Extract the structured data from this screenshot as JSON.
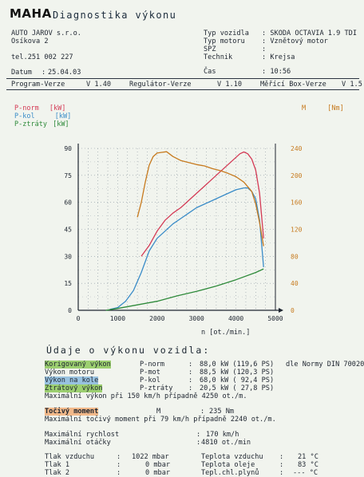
{
  "header": {
    "logo": "MAHA",
    "title": "Diagnostika výkonu",
    "company": [
      "AUTO JAROV s.r.o.",
      "Osíkova 2"
    ],
    "phone": "tel.251 002 227",
    "date_label": "Datum",
    "date_value": "25.04.03",
    "vehicle": [
      {
        "label": "Typ vozidla",
        "value": "SKODA OCTAVIA 1.9 TDI"
      },
      {
        "label": "Typ motoru",
        "value": "Vznětový motor"
      },
      {
        "label": "SPZ",
        "value": ""
      },
      {
        "label": "Technik",
        "value": "Krejsa"
      },
      {
        "label": "Čas",
        "value": "10:56"
      }
    ],
    "versions": [
      {
        "label": "Program-Verze",
        "value": "V 1.40"
      },
      {
        "label": "Regulátor-Verze",
        "value": "V 1.10"
      },
      {
        "label": "Měřící Box-Verze",
        "value": "V 1.5"
      }
    ]
  },
  "legend": [
    {
      "name": "P-norm",
      "unit": "[kW]",
      "color": "#d43a55"
    },
    {
      "name": "P-kol",
      "unit": "[kW]",
      "color": "#3a8cc8"
    },
    {
      "name": "P-ztráty",
      "unit": "[kW]",
      "color": "#2e8a3a"
    }
  ],
  "torque_legend": {
    "name": "M",
    "unit": "[Nm]",
    "color": "#c77a1e"
  },
  "chart_data": {
    "type": "line",
    "xlabel": "n [ot./min.]",
    "xlim": [
      0,
      5000
    ],
    "xticks": [
      0,
      1000,
      2000,
      3000,
      4000,
      5000
    ],
    "ylim": [
      0,
      90
    ],
    "yticks": [
      0,
      15,
      30,
      45,
      60,
      75,
      90
    ],
    "y2lim": [
      0,
      240
    ],
    "y2ticks": [
      0,
      40,
      80,
      120,
      160,
      200,
      240
    ],
    "grid": true,
    "series": [
      {
        "name": "P-norm",
        "axis": "left",
        "color": "#d43a55",
        "x": [
          1600,
          1800,
          2000,
          2200,
          2400,
          2600,
          2800,
          3000,
          3200,
          3400,
          3600,
          3800,
          4000,
          4100,
          4200,
          4300,
          4400,
          4500,
          4600,
          4700
        ],
        "y": [
          30,
          36,
          44,
          50,
          54,
          57,
          61,
          65,
          69,
          73,
          77,
          81,
          85,
          87,
          88,
          87,
          84,
          78,
          65,
          40
        ]
      },
      {
        "name": "P-kol",
        "axis": "left",
        "color": "#3a8cc8",
        "x": [
          800,
          1000,
          1200,
          1400,
          1600,
          1800,
          2000,
          2200,
          2400,
          2600,
          2800,
          3000,
          3200,
          3400,
          3600,
          3800,
          4000,
          4200,
          4300,
          4400,
          4500,
          4600,
          4700
        ],
        "y": [
          0.5,
          1.5,
          5,
          11,
          21,
          33,
          40,
          44,
          48,
          51,
          54,
          57,
          59,
          61,
          63,
          65,
          67,
          68,
          68,
          66,
          62,
          50,
          24
        ]
      },
      {
        "name": "P-ztráty",
        "axis": "left",
        "color": "#2e8a3a",
        "x": [
          700,
          1000,
          1500,
          2000,
          2500,
          3000,
          3500,
          4000,
          4500,
          4700
        ],
        "y": [
          0,
          1,
          3,
          5,
          8,
          10.5,
          13.5,
          17,
          21,
          23
        ]
      },
      {
        "name": "M",
        "axis": "right",
        "color": "#c77a1e",
        "x": [
          1500,
          1600,
          1700,
          1800,
          1900,
          2000,
          2100,
          2240,
          2400,
          2600,
          2800,
          3000,
          3200,
          3400,
          3600,
          3800,
          4000,
          4200,
          4400,
          4500,
          4600,
          4700
        ],
        "y": [
          138,
          160,
          190,
          215,
          228,
          233,
          234,
          235,
          228,
          222,
          219,
          216,
          214,
          210,
          207,
          203,
          198,
          190,
          176,
          158,
          130,
          95
        ]
      }
    ]
  },
  "results": {
    "section_title": "Údaje o výkonu vozidla:",
    "rows": [
      {
        "label": "Korigovaný výkon",
        "sym": "P-norm",
        "value": "88,0 kW (119,6 PS)",
        "extra": "dle Normy DIN 70020"
      },
      {
        "label": "Výkon motoru",
        "sym": "P-mot",
        "value": "88,5 kW (120,3 PS)",
        "extra": ""
      },
      {
        "label": "Výkon na kole",
        "sym": "P-kol",
        "value": "68,0 kW ( 92,4 PS)",
        "extra": ""
      },
      {
        "label": "Ztrátový výkon",
        "sym": "P-ztráty",
        "value": "20,5 kW ( 27,8 PS)",
        "extra": ""
      }
    ],
    "max_power_line": "Maximální výkon při 150 km/h případně 4250 ot./m.",
    "torque_label": "Točivý moment",
    "torque_sym": "M",
    "torque_value": "235 Nm",
    "max_torque_line": "Maximální točivý moment při 79 km/h případně 2240 ot./m.",
    "max_speed_label": "Maximální rychlost",
    "max_speed_value": "170 km/h",
    "max_rpm_label": "Maximální otáčky",
    "max_rpm_value": "4810 ot./min",
    "conditions_left": [
      {
        "label": "Tlak vzduchu",
        "value": "1022 mbar"
      },
      {
        "label": "Tlak 1",
        "value": "0 mbar"
      },
      {
        "label": "Tlak 2",
        "value": "0 mbar"
      }
    ],
    "conditions_right": [
      {
        "label": "Teplota vzduchu",
        "value": "21 °C"
      },
      {
        "label": "Teplota oleje",
        "value": "83 °C"
      },
      {
        "label": "Tepl.chl.plynů",
        "value": "--- °C"
      }
    ]
  }
}
